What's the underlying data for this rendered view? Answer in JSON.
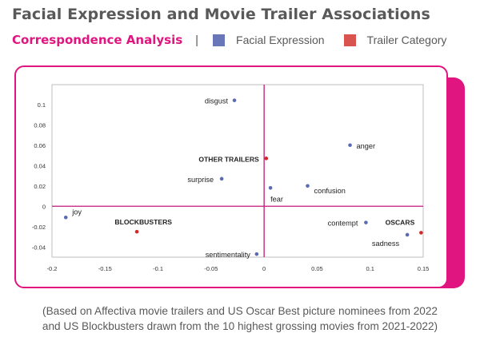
{
  "header": {
    "title": "Facial Expression and Movie Trailer Associations",
    "subtitle": "Correspondence Analysis",
    "separator": "|"
  },
  "legend": [
    {
      "label": "Facial Expression",
      "color": "#6977b8"
    },
    {
      "label": "Trailer Category",
      "color": "#d9534f"
    }
  ],
  "colors": {
    "accent": "#e0157f",
    "expression": "#5b6bb3",
    "category": "#d62728"
  },
  "footnote": {
    "line1": "(Based on Affectiva movie trailers and US Oscar Best picture nominees from 2022",
    "line2": "and US Blockbusters drawn from the 10 highest grossing movies from 2021-2022)"
  },
  "chart_data": {
    "type": "scatter",
    "title": "",
    "xlabel": "",
    "ylabel": "",
    "xlim": [
      -0.2,
      0.15
    ],
    "ylim": [
      -0.05,
      0.11
    ],
    "xticks": [
      -0.2,
      -0.15,
      -0.1,
      -0.05,
      0,
      0.05,
      0.1,
      0.15
    ],
    "xtick_labels": [
      "-0.2",
      "-0.15",
      "-0.1",
      "-0.05",
      "0",
      "0.05",
      "0.1",
      "0.15"
    ],
    "yticks": [
      -0.04,
      -0.02,
      0,
      0.02,
      0.04,
      0.06,
      0.08,
      0.1
    ],
    "ytick_labels": [
      "-0.04",
      "-0.02",
      "0",
      "0.02",
      "0.04",
      "0.06",
      "0.08",
      "0.1"
    ],
    "reference_lines": {
      "x": 0,
      "y": 0
    },
    "grid": false,
    "series": [
      {
        "name": "Facial Expression",
        "points": [
          {
            "label": "disgust",
            "x": -0.028,
            "y": 0.104
          },
          {
            "label": "anger",
            "x": 0.081,
            "y": 0.06
          },
          {
            "label": "surprise",
            "x": -0.04,
            "y": 0.027
          },
          {
            "label": "fear",
            "x": 0.006,
            "y": 0.018
          },
          {
            "label": "confusion",
            "x": 0.041,
            "y": 0.02
          },
          {
            "label": "joy",
            "x": -0.187,
            "y": -0.011
          },
          {
            "label": "contempt",
            "x": 0.096,
            "y": -0.016
          },
          {
            "label": "sadness",
            "x": 0.135,
            "y": -0.028
          },
          {
            "label": "sentimentality",
            "x": -0.007,
            "y": -0.047
          }
        ]
      },
      {
        "name": "Trailer Category",
        "points": [
          {
            "label": "OTHER TRAILERS",
            "x": 0.002,
            "y": 0.047
          },
          {
            "label": "BLOCKBUSTERS",
            "x": -0.12,
            "y": -0.025
          },
          {
            "label": "OSCARS",
            "x": 0.148,
            "y": -0.026
          }
        ]
      }
    ]
  }
}
